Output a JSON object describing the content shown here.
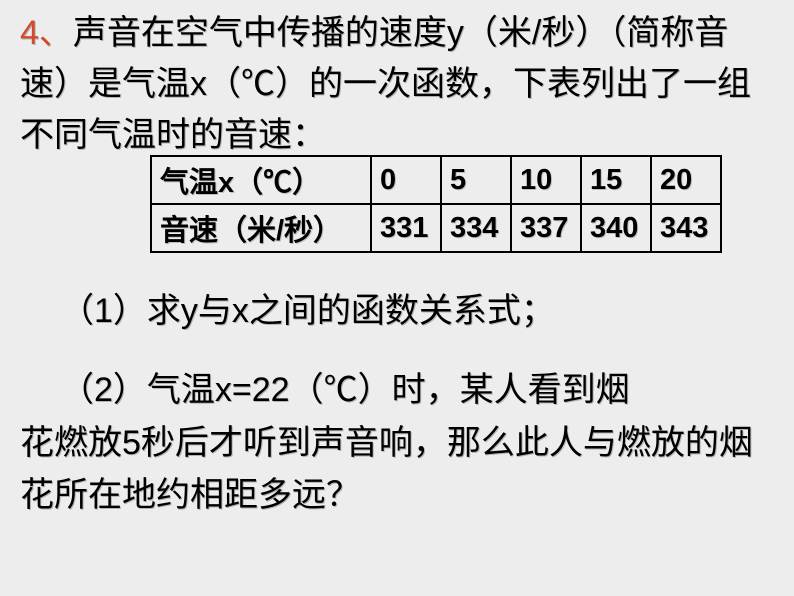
{
  "problem": {
    "number": "4、",
    "text_line": "声音在空气中传播的速度y（米/秒）（简称音速）是气温x（℃）的一次函数，下表列出了一组不同气温时的音速："
  },
  "table": {
    "type": "table",
    "border_color": "#000000",
    "font_size": 29,
    "font_weight": "bold",
    "columns_label_width": 220,
    "value_col_width": 70,
    "rows": [
      {
        "label": "气温x（℃）",
        "values": [
          "0",
          "5",
          "10",
          "15",
          "20"
        ]
      },
      {
        "label": "音速（米/秒）",
        "values": [
          "331",
          "334",
          "337",
          "340",
          "343"
        ]
      }
    ]
  },
  "question1": "（1）求y与x之间的函数关系式；",
  "question2": {
    "line1": "（2）气温x=22（℃）时，某人看到烟",
    "line2": "花燃放5秒后才听到声音响，那么此人与燃放的烟花所在地约相距多远？"
  },
  "colors": {
    "background": "#ededed",
    "text": "#000000",
    "number": "#d24a2c"
  }
}
